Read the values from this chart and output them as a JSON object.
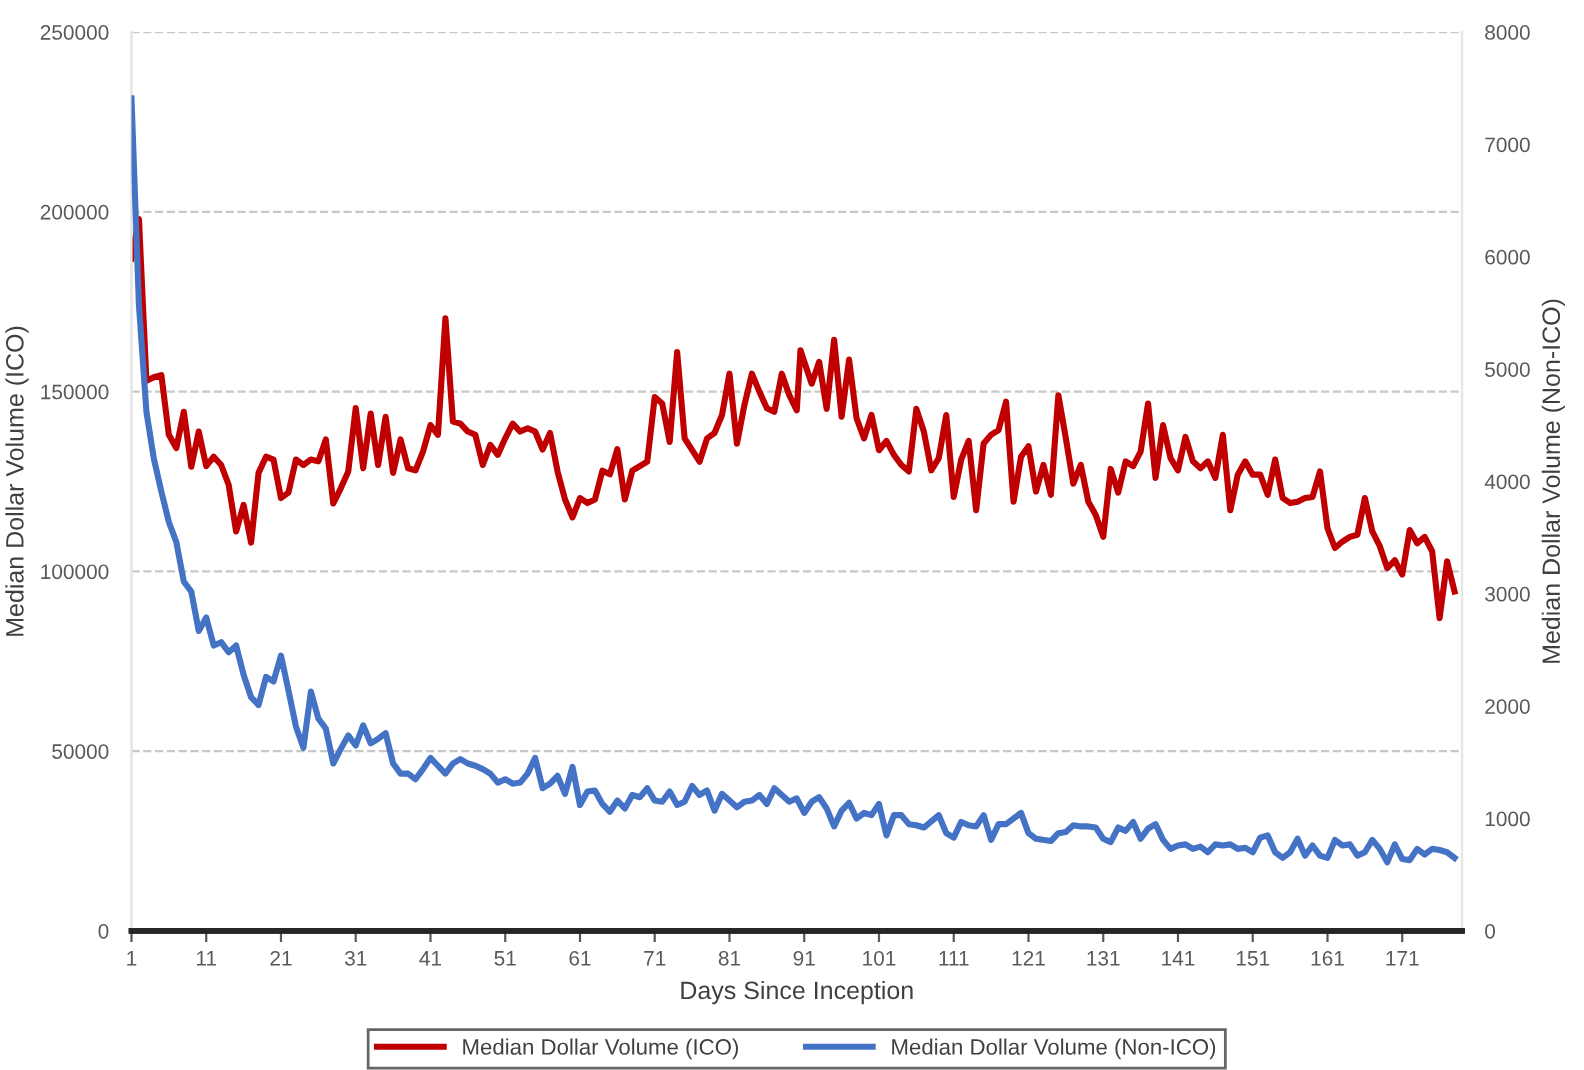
{
  "chart_data": {
    "type": "line",
    "xlabel": "Days Since Inception",
    "ylabel": "Median Dollar Volume (ICO)",
    "y2label": "Median Dollar Volume (Non-ICO)",
    "xlim": [
      1,
      179
    ],
    "xticks": [
      1,
      11,
      21,
      31,
      41,
      51,
      61,
      71,
      81,
      91,
      101,
      111,
      121,
      131,
      141,
      151,
      161,
      171
    ],
    "ylim": [
      0,
      250000
    ],
    "yticks": [
      0,
      50000,
      100000,
      150000,
      200000,
      250000
    ],
    "y2lim": [
      0,
      8000
    ],
    "y2ticks": [
      0,
      1000,
      2000,
      3000,
      4000,
      5000,
      6000,
      7000,
      8000
    ],
    "grid": "y",
    "legend": "bottom",
    "line_style": "solid",
    "marker": "none",
    "series": [
      {
        "name": "Median Dollar Volume (ICO)",
        "color": "#c00000",
        "axis": "y",
        "x": [
          1,
          2,
          3,
          4,
          5,
          6,
          7,
          8,
          9,
          10,
          11,
          12,
          13,
          14,
          15,
          16,
          17,
          18,
          19,
          20,
          21,
          22,
          23,
          24,
          25,
          26,
          27,
          28,
          29,
          30,
          31,
          32,
          33,
          34,
          35,
          36,
          37,
          38,
          39,
          40,
          41,
          42,
          43,
          44,
          45,
          46,
          47,
          48,
          49,
          50,
          51,
          52,
          53,
          54,
          55,
          56,
          57,
          58,
          59,
          60,
          61,
          62,
          63,
          64,
          65,
          66,
          67,
          68,
          70,
          71,
          72,
          73,
          74,
          75,
          77,
          78,
          79,
          80,
          81,
          82,
          83,
          84,
          85,
          86,
          87,
          88,
          89,
          90,
          90.5,
          91,
          92,
          93,
          94,
          95,
          96,
          97,
          98,
          99,
          100,
          101,
          102,
          103,
          104,
          105,
          106,
          107,
          108,
          109,
          110,
          111,
          112,
          113,
          114,
          115,
          116,
          117,
          118,
          119,
          120,
          121,
          122,
          123,
          124,
          125,
          126,
          127,
          128,
          129,
          130,
          131,
          132,
          133,
          134,
          135,
          136,
          137,
          138,
          139,
          140,
          141,
          142,
          143,
          144,
          145,
          146,
          147,
          148,
          149,
          150,
          151,
          152,
          153,
          154,
          155,
          156,
          157,
          158,
          159,
          160,
          161,
          162,
          163,
          164,
          165,
          166,
          167,
          168,
          169,
          170,
          171,
          172,
          173,
          174,
          175,
          176,
          177,
          178
        ],
        "values": [
          187000,
          198000,
          153000,
          154000,
          154600,
          138000,
          134300,
          144400,
          129100,
          138900,
          129300,
          131900,
          129600,
          124100,
          111100,
          118500,
          108000,
          127400,
          131900,
          131100,
          120400,
          121900,
          131100,
          129600,
          131100,
          130600,
          136700,
          118900,
          123100,
          127800,
          145400,
          128700,
          143900,
          129600,
          143000,
          127400,
          136700,
          128700,
          128100,
          133300,
          140700,
          138000,
          170400,
          141700,
          141100,
          138900,
          138000,
          129600,
          135200,
          132400,
          137000,
          141100,
          138900,
          139800,
          138900,
          133900,
          138500,
          127800,
          120000,
          115000,
          120400,
          119000,
          120000,
          128000,
          127000,
          134000,
          120000,
          128000,
          130500,
          148500,
          146700,
          136000,
          161000,
          137000,
          130500,
          137000,
          138500,
          143500,
          155000,
          135500,
          146300,
          155000,
          150000,
          145400,
          144400,
          155000,
          149000,
          144800,
          161500,
          158300,
          152200,
          158300,
          145200,
          164400,
          143000,
          158900,
          142600,
          137000,
          143500,
          133700,
          136300,
          132400,
          129600,
          127800,
          145200,
          138900,
          128100,
          131500,
          143500,
          120700,
          131100,
          136300,
          117000,
          135600,
          138000,
          139300,
          147200,
          119400,
          131900,
          134800,
          122200,
          129600,
          121300,
          149000,
          137000,
          124400,
          129600,
          119400,
          115700,
          109600,
          128500,
          121900,
          130600,
          129300,
          133300,
          146700,
          126000,
          140700,
          131500,
          128100,
          137400,
          130600,
          128700,
          130600,
          126000,
          138000,
          117000,
          126900,
          130600,
          126900,
          126900,
          121300,
          131100,
          120400,
          119000,
          119400,
          120400,
          120700,
          127800,
          112000,
          106500,
          108300,
          109600,
          110200,
          120400,
          111100,
          107000,
          100900,
          103100,
          99100,
          111500,
          107800,
          109600,
          105600,
          87000,
          102800,
          94400
        ]
      },
      {
        "name": "Median Dollar Volume (Non-ICO)",
        "color": "#4472c4",
        "axis": "y2",
        "x": [
          1,
          2,
          3,
          4,
          5,
          6,
          7,
          8,
          9,
          10,
          11,
          12,
          13,
          14,
          15,
          16,
          17,
          18,
          19,
          20,
          21,
          22,
          23,
          24,
          25,
          26,
          27,
          28,
          29,
          30,
          31,
          32,
          33,
          34,
          35,
          36,
          37,
          38,
          39,
          40,
          41,
          42,
          43,
          44,
          45,
          46,
          47,
          48,
          49,
          50,
          51,
          52,
          53,
          54,
          55,
          56,
          57,
          58,
          59,
          60,
          61,
          62,
          63,
          64,
          65,
          66,
          67,
          68,
          69,
          70,
          71,
          72,
          73,
          74,
          75,
          76,
          77,
          78,
          79,
          80,
          81,
          82,
          83,
          84,
          85,
          86,
          87,
          88,
          89,
          90,
          91,
          92,
          93,
          94,
          95,
          96,
          97,
          98,
          99,
          100,
          101,
          102,
          103,
          104,
          105,
          106,
          107,
          109,
          110,
          111,
          112,
          113,
          114,
          115,
          116,
          117,
          118,
          120,
          121,
          122,
          124,
          125,
          126,
          127,
          128,
          129,
          130,
          131,
          132,
          133,
          134,
          135,
          136,
          137,
          138,
          139,
          140,
          141,
          142,
          143,
          144,
          145,
          146,
          147,
          148,
          149,
          150,
          151,
          152,
          153,
          154,
          155,
          156,
          157,
          158,
          159,
          160,
          161,
          162,
          163,
          164,
          165,
          166,
          167,
          168,
          169,
          170,
          171,
          172,
          173,
          174,
          175,
          176,
          177,
          178
        ],
        "values": [
          7410,
          5570,
          4620,
          4200,
          3910,
          3640,
          3460,
          3110,
          3020,
          2670,
          2790,
          2540,
          2570,
          2480,
          2540,
          2280,
          2080,
          2010,
          2260,
          2220,
          2450,
          2140,
          1820,
          1630,
          2130,
          1890,
          1800,
          1490,
          1620,
          1740,
          1650,
          1830,
          1670,
          1710,
          1760,
          1490,
          1400,
          1400,
          1350,
          1440,
          1540,
          1470,
          1400,
          1490,
          1530,
          1490,
          1470,
          1440,
          1400,
          1320,
          1350,
          1310,
          1320,
          1400,
          1540,
          1270,
          1310,
          1380,
          1220,
          1460,
          1120,
          1240,
          1250,
          1130,
          1060,
          1160,
          1090,
          1210,
          1190,
          1270,
          1160,
          1150,
          1240,
          1120,
          1150,
          1290,
          1210,
          1250,
          1070,
          1220,
          1160,
          1100,
          1150,
          1160,
          1210,
          1130,
          1270,
          1210,
          1150,
          1180,
          1050,
          1150,
          1190,
          1090,
          930,
          1070,
          1140,
          1000,
          1050,
          1030,
          1130,
          850,
          1030,
          1030,
          950,
          940,
          920,
          1030,
          870,
          830,
          970,
          940,
          930,
          1030,
          810,
          950,
          950,
          1050,
          870,
          820,
          800,
          870,
          880,
          940,
          930,
          930,
          920,
          820,
          790,
          920,
          890,
          970,
          820,
          910,
          950,
          810,
          730,
          760,
          770,
          730,
          750,
          700,
          770,
          760,
          770,
          730,
          740,
          700,
          830,
          850,
          700,
          650,
          700,
          820,
          670,
          760,
          670,
          650,
          810,
          760,
          770,
          670,
          700,
          810,
          730,
          610,
          770,
          640,
          630,
          730,
          680,
          730,
          720,
          700,
          650
        ]
      }
    ]
  }
}
